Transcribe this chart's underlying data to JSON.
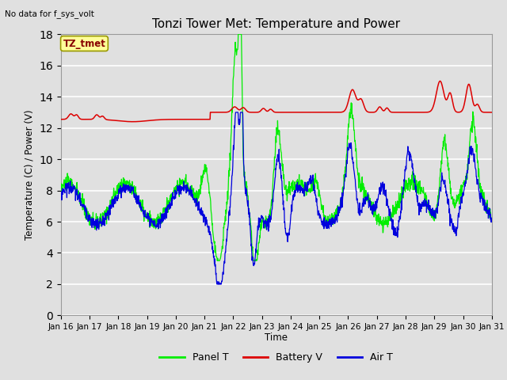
{
  "title": "Tonzi Tower Met: Temperature and Power",
  "topleft_text": "No data for f_sys_volt",
  "xlabel": "Time",
  "ylabel": "Temperature (C) / Power (V)",
  "xlim": [
    0,
    15
  ],
  "ylim": [
    0,
    18
  ],
  "yticks": [
    0,
    2,
    4,
    6,
    8,
    10,
    12,
    14,
    16,
    18
  ],
  "xtick_labels": [
    "Jan 16",
    "Jan 17",
    "Jan 18",
    "Jan 19",
    "Jan 20",
    "Jan 21",
    "Jan 22",
    "Jan 23",
    "Jan 24",
    "Jan 25",
    "Jan 26",
    "Jan 27",
    "Jan 28",
    "Jan 29",
    "Jan 30",
    "Jan 31"
  ],
  "bg_color": "#e0e0e0",
  "plot_bg_color": "#e0e0e0",
  "grid_color": "white",
  "panel_t_color": "#00ee00",
  "battery_v_color": "#dd0000",
  "air_t_color": "#0000dd",
  "legend_label_box": "TZ_tmet",
  "legend_box_facecolor": "#ffff99",
  "legend_box_edgecolor": "#999900",
  "legend_text_color": "#880000"
}
